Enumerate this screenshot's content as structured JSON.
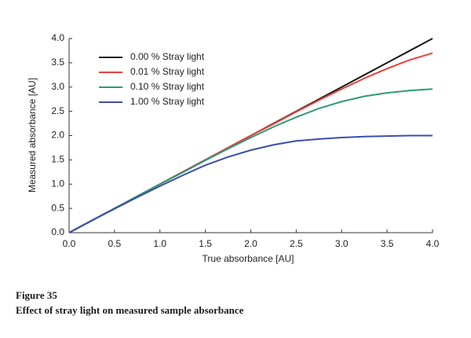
{
  "chart_data": {
    "type": "line",
    "x_label": "True absorbance [AU]",
    "y_label": "Measured absorbance [AU]",
    "figure_label": "Figure 35",
    "caption": "Effect of stray light on measured sample absorbance",
    "x": [
      0,
      0.25,
      0.5,
      0.75,
      1,
      1.25,
      1.5,
      1.75,
      2,
      2.25,
      2.5,
      2.75,
      3,
      3.25,
      3.5,
      3.75,
      4
    ],
    "series": [
      {
        "name": "0.00 % Stray light",
        "color": "#1a1a1a",
        "values": [
          0,
          0.25,
          0.5,
          0.75,
          1,
          1.25,
          1.5,
          1.75,
          2,
          2.25,
          2.5,
          2.75,
          3,
          3.25,
          3.5,
          3.75,
          4
        ]
      },
      {
        "name": "0.01 % Stray light",
        "color": "#e8403a",
        "values": [
          0,
          0.25,
          0.5,
          0.75,
          1,
          1.25,
          1.5,
          1.75,
          2,
          2.24,
          2.49,
          2.73,
          2.96,
          3.18,
          3.38,
          3.56,
          3.7
        ]
      },
      {
        "name": "0.10 % Stray light",
        "color": "#2e9a78",
        "values": [
          0,
          0.25,
          0.5,
          0.75,
          1,
          1.24,
          1.49,
          1.73,
          1.96,
          2.18,
          2.38,
          2.56,
          2.7,
          2.81,
          2.88,
          2.93,
          2.96
        ]
      },
      {
        "name": "1.00 % Stray light",
        "color": "#3a4fa8",
        "values": [
          0,
          0.25,
          0.49,
          0.73,
          0.96,
          1.18,
          1.39,
          1.56,
          1.7,
          1.81,
          1.89,
          1.93,
          1.96,
          1.98,
          1.99,
          2.0,
          2.0
        ]
      }
    ],
    "xlim": [
      0,
      4
    ],
    "ylim": [
      0,
      4
    ],
    "xticks": [
      {
        "value": 0,
        "label": "0.0"
      },
      0.5,
      {
        "value": 1,
        "label": "1.0"
      },
      1.5,
      {
        "value": 2,
        "label": "2.0"
      },
      2.5,
      {
        "value": 3,
        "label": "3.0"
      },
      3.5,
      {
        "value": 4,
        "label": "4.0"
      }
    ],
    "yticks": [
      {
        "value": 0,
        "label": "0.0"
      },
      0.5,
      {
        "value": 1,
        "label": "1.0"
      },
      1.5,
      {
        "value": 2,
        "label": "2.0"
      },
      2.5,
      {
        "value": 3,
        "label": "3.0"
      },
      3.5,
      {
        "value": 4,
        "label": "4.0"
      }
    ],
    "legend": "upper left",
    "grid": false
  }
}
